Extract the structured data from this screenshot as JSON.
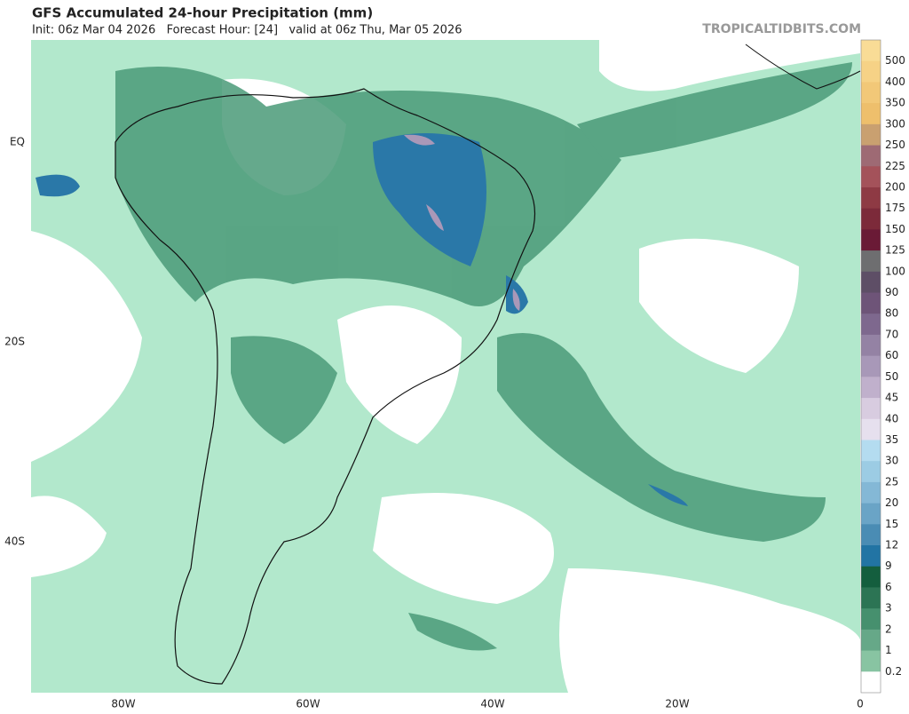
{
  "header": {
    "title": "GFS Accumulated 24-hour Precipitation (mm)",
    "subtitle": "Init: 06z Mar 04 2026   Forecast Hour: [24]   valid at 06z Thu, Mar 05 2026",
    "site": "TROPICALTIDBITS.COM"
  },
  "map": {
    "lat_labels": [
      "EQ",
      "20S",
      "40S"
    ],
    "lon_labels": [
      "80W",
      "60W",
      "40W",
      "20W",
      "0"
    ]
  },
  "colorbar": {
    "levels": [
      500,
      400,
      350,
      300,
      250,
      225,
      200,
      175,
      150,
      125,
      100,
      90,
      80,
      70,
      60,
      50,
      45,
      40,
      35,
      30,
      25,
      20,
      15,
      12,
      9,
      6,
      3,
      2,
      1,
      0.2
    ],
    "colors": [
      "#f9dc96",
      "#f6d286",
      "#f2c878",
      "#eebf6c",
      "#c9a070",
      "#9e6a74",
      "#a4525a",
      "#8e3a44",
      "#7c2a3a",
      "#6a1a36",
      "#6e6e70",
      "#5e4e66",
      "#6e5478",
      "#7e688e",
      "#9482a4",
      "#a898b8",
      "#c0b0cc",
      "#d8cce0",
      "#e6e0ee",
      "#b4dcf0",
      "#9ccce4",
      "#84b8d6",
      "#6aa4c6",
      "#4a8cb4",
      "#2274a4",
      "#145e3e",
      "#2c7454",
      "#46906e",
      "#66a888",
      "#88c4a2",
      "#ffffff"
    ]
  }
}
